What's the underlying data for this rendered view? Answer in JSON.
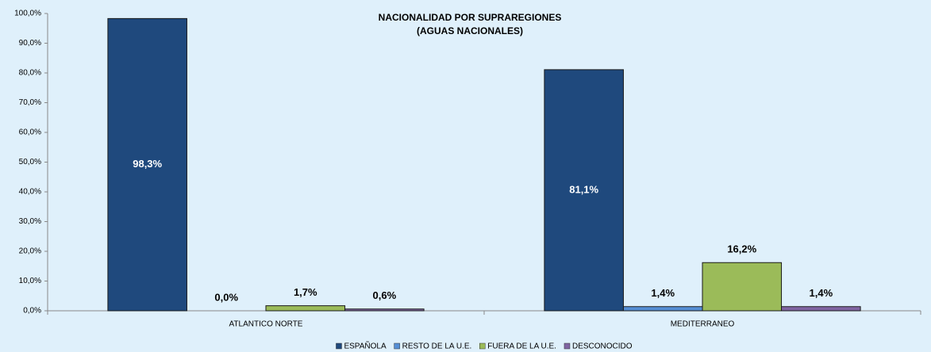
{
  "chart_data": {
    "type": "bar",
    "title": "NACIONALIDAD POR SUPRAREGIONES",
    "subtitle": "(AGUAS NACIONALES)",
    "categories": [
      "ATLANTICO NORTE",
      "MEDITERRANEO"
    ],
    "series": [
      {
        "name": "ESPAÑOLA",
        "color": "#1f497d",
        "values": [
          98.3,
          81.1
        ],
        "value_labels": [
          "98,3%",
          "81,1%"
        ]
      },
      {
        "name": "RESTO DE LA U.E.",
        "color": "#558ed5",
        "values": [
          0.0,
          1.4
        ],
        "value_labels": [
          "0,0%",
          "1,4%"
        ]
      },
      {
        "name": "FUERA DE LA U.E.",
        "color": "#9bbb59",
        "values": [
          1.7,
          16.2
        ],
        "value_labels": [
          "1,7%",
          "16,2%"
        ]
      },
      {
        "name": "DESCONOCIDO",
        "color": "#8064a2",
        "values": [
          0.6,
          1.4
        ],
        "value_labels": [
          "0,6%",
          "1,4%"
        ]
      }
    ],
    "ylim": [
      0,
      100
    ],
    "yticks": [
      {
        "value": 0,
        "label": "0,0%"
      },
      {
        "value": 10,
        "label": "10,0%"
      },
      {
        "value": 20,
        "label": "20,0%"
      },
      {
        "value": 30,
        "label": "30,0%"
      },
      {
        "value": 40,
        "label": "40,0%"
      },
      {
        "value": 50,
        "label": "50,0%"
      },
      {
        "value": 60,
        "label": "60,0%"
      },
      {
        "value": 70,
        "label": "70,0%"
      },
      {
        "value": 80,
        "label": "80,0%"
      },
      {
        "value": 90,
        "label": "90,0%"
      },
      {
        "value": 100,
        "label": "100,0%"
      }
    ],
    "grid": false,
    "legend": "bottom"
  }
}
